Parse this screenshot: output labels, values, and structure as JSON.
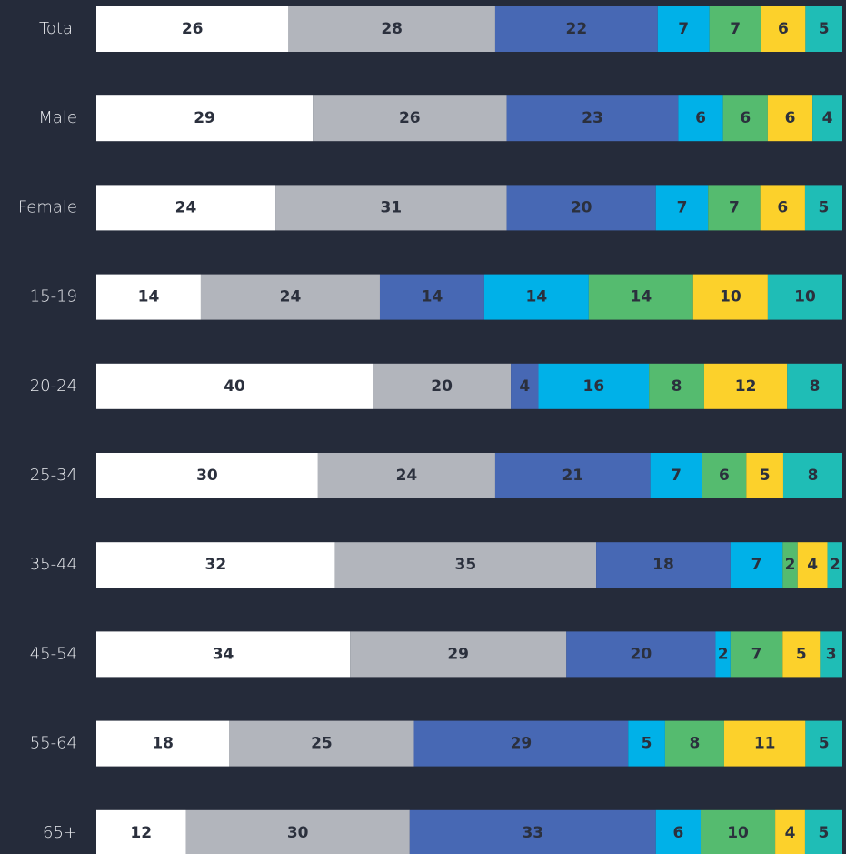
{
  "chart_data": {
    "type": "bar",
    "orientation": "horizontal",
    "stacked": true,
    "categories": [
      "Total",
      "Male",
      "Female",
      "15-19",
      "20-24",
      "25-34",
      "35-44",
      "45-54",
      "55-64",
      "65+"
    ],
    "series": [
      {
        "color": "#ffffff",
        "values": [
          26,
          29,
          24,
          14,
          40,
          30,
          32,
          34,
          18,
          12
        ]
      },
      {
        "color": "#b2b5bc",
        "values": [
          28,
          26,
          31,
          24,
          20,
          24,
          35,
          29,
          25,
          30
        ]
      },
      {
        "color": "#4768b4",
        "values": [
          22,
          23,
          20,
          14,
          4,
          21,
          18,
          20,
          29,
          33
        ]
      },
      {
        "color": "#00b1e8",
        "values": [
          7,
          6,
          7,
          14,
          16,
          7,
          7,
          2,
          5,
          6
        ]
      },
      {
        "color": "#55bb6f",
        "values": [
          7,
          6,
          7,
          14,
          8,
          6,
          2,
          7,
          8,
          10
        ]
      },
      {
        "color": "#fcd12b",
        "values": [
          6,
          6,
          6,
          10,
          12,
          5,
          4,
          5,
          11,
          4
        ]
      },
      {
        "color": "#1fbdb6",
        "values": [
          5,
          4,
          5,
          10,
          8,
          8,
          2,
          3,
          5,
          5
        ]
      }
    ]
  }
}
